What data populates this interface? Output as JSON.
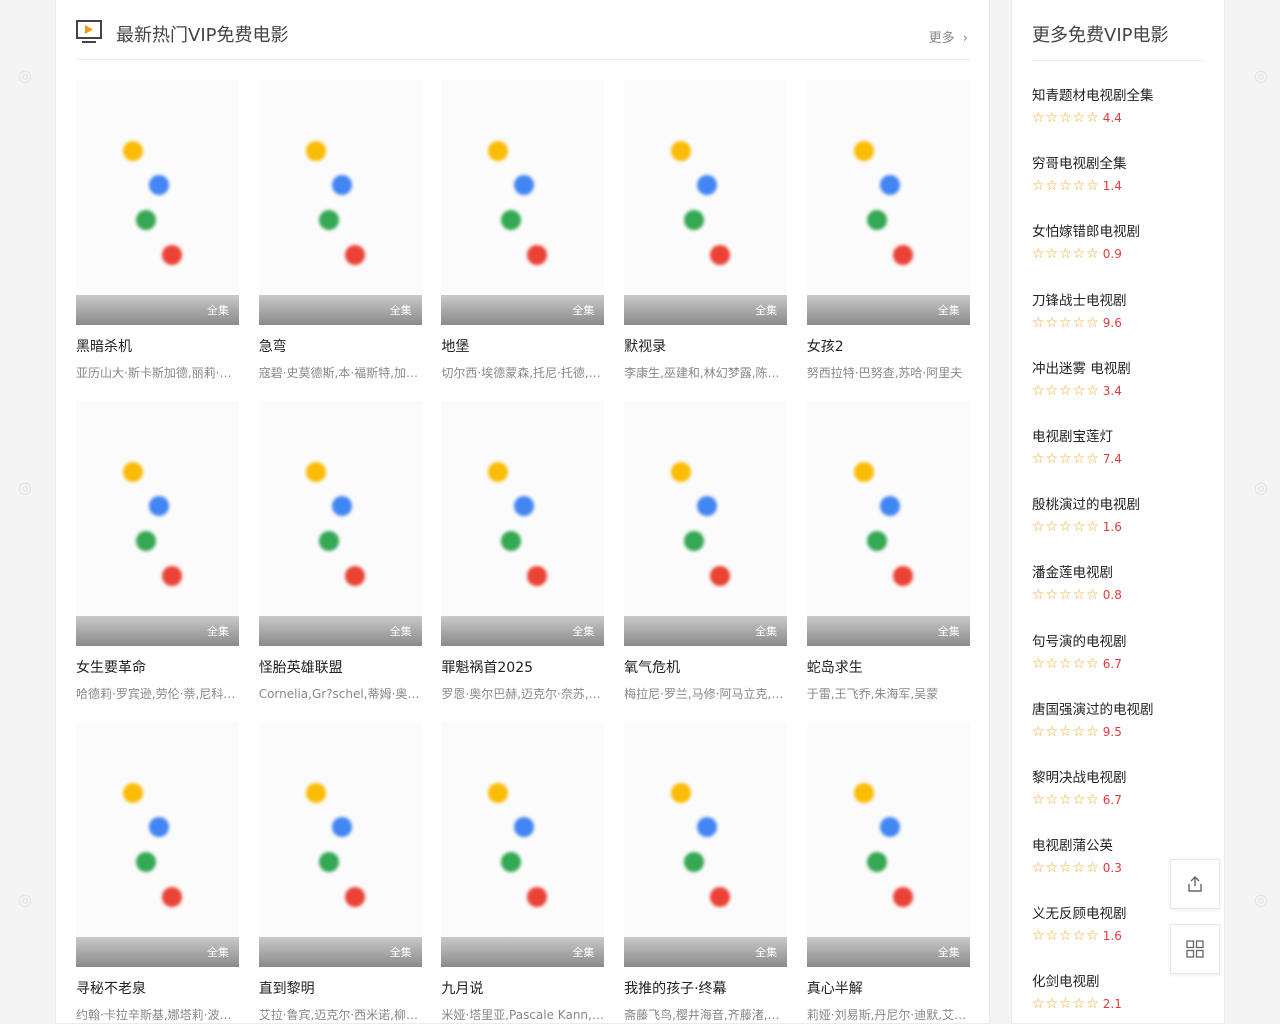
{
  "main": {
    "title": "最新热门VIP免费电影",
    "more_label": "更多",
    "badge_label": "全集",
    "movies": [
      {
        "title": "黑暗杀机",
        "cast": "亚历山大·斯卡斯加德,丽莉·詹姆斯"
      },
      {
        "title": "急弯",
        "cast": "寇碧·史莫德斯,本·福斯特,加里·奥德曼"
      },
      {
        "title": "地堡",
        "cast": "切尔西·埃德蒙森,托尼·托德,小巴"
      },
      {
        "title": "默视录",
        "cast": "李康生,巫建和,林幻梦露,陈湘琪"
      },
      {
        "title": "女孩2",
        "cast": "努西拉特·巴努查,苏哈·阿里夫"
      },
      {
        "title": "女生要革命",
        "cast": "哈德莉·罗宾逊,劳伦·萘,尼科·希拉伽"
      },
      {
        "title": "怪胎英雄联盟",
        "cast": "Cornelia,Gr?schel,蒂姆·奥利弗"
      },
      {
        "title": "罪魁祸首2025",
        "cast": "罗恩·奥尔巴赫,迈克尔·奈苏,杰森"
      },
      {
        "title": "氧气危机",
        "cast": "梅拉尼·罗兰,马修·阿马立克,马利克"
      },
      {
        "title": "蛇岛求生",
        "cast": "于雷,王飞乔,朱海军,吴蒙"
      },
      {
        "title": "寻秘不老泉",
        "cast": "约翰·卡拉辛斯基,娜塔莉·波特曼"
      },
      {
        "title": "直到黎明",
        "cast": "艾拉·鲁宾,迈克尔·西米诺,柳美麟"
      },
      {
        "title": "九月说",
        "cast": "米娅·塔里亚,Pascale Kann,拉克"
      },
      {
        "title": "我推的孩子·终幕",
        "cast": "斋藤飞鸟,樱井海音,齐藤渚,岩崎"
      },
      {
        "title": "真心半解",
        "cast": "莉娅·刘易斯,丹尼尔·迪默,艾丽西亚"
      }
    ]
  },
  "sidebar": {
    "title": "更多免费VIP电影",
    "stars_glyph": "☆☆☆☆☆",
    "items": [
      {
        "name": "知青题材电视剧全集",
        "score": "4.4"
      },
      {
        "name": "穷哥电视剧全集",
        "score": "1.4"
      },
      {
        "name": "女怕嫁错郎电视剧",
        "score": "0.9"
      },
      {
        "name": "刀锋战士电视剧",
        "score": "9.6"
      },
      {
        "name": "冲出迷雾 电视剧",
        "score": "3.4"
      },
      {
        "name": "电视剧宝莲灯",
        "score": "7.4"
      },
      {
        "name": "殷桃演过的电视剧",
        "score": "1.6"
      },
      {
        "name": "潘金莲电视剧",
        "score": "0.8"
      },
      {
        "name": "句号演的电视剧",
        "score": "6.7"
      },
      {
        "name": "唐国强演过的电视剧",
        "score": "9.5"
      },
      {
        "name": "黎明决战电视剧",
        "score": "6.7"
      },
      {
        "name": "电视剧蒲公英",
        "score": "0.3"
      },
      {
        "name": "义无反顾电视剧",
        "score": "1.6"
      },
      {
        "name": "化剑电视剧",
        "score": "2.1"
      }
    ]
  },
  "float": {
    "share_icon": "share-icon",
    "grid_icon": "grid-icon"
  },
  "colors": {
    "star": "#f5a623",
    "score": "#e4393c",
    "accent": "#f39c12"
  }
}
